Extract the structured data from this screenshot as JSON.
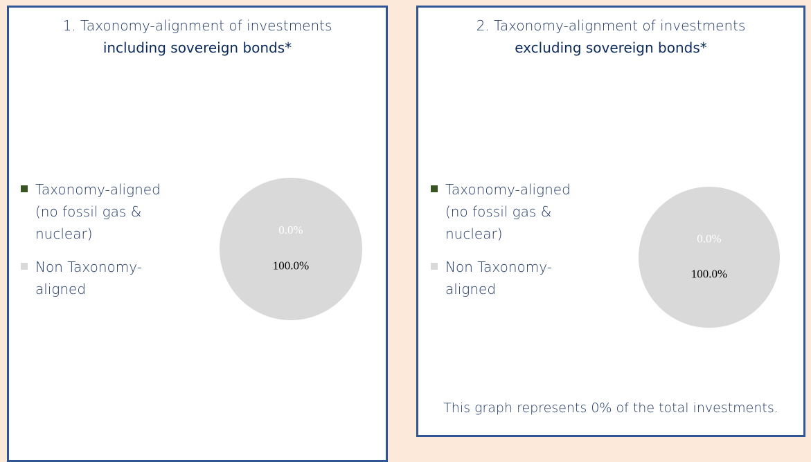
{
  "chart_data": [
    {
      "type": "pie",
      "title": "1. Taxonomy-alignment of investments",
      "subtitle": "including sovereign bonds*",
      "categories": [
        "Taxonomy-aligned (no fossil gas & nuclear)",
        "Non Taxonomy-aligned"
      ],
      "values": [
        0,
        100
      ],
      "value_labels": [
        "0.0%",
        "100.0%"
      ],
      "colors": [
        "#375623",
        "#d9d9d9"
      ]
    },
    {
      "type": "pie",
      "title": "2. Taxonomy-alignment of investments",
      "subtitle": "excluding sovereign bonds*",
      "categories": [
        "Taxonomy-aligned (no fossil gas & nuclear)",
        "Non Taxonomy-aligned"
      ],
      "values": [
        0,
        100
      ],
      "value_labels": [
        "0.0%",
        "100.0%"
      ],
      "colors": [
        "#375623",
        "#d9d9d9"
      ],
      "annotation": "This graph represents 0% of the total investments."
    }
  ]
}
